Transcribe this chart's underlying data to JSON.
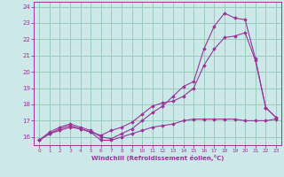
{
  "xlabel": "Windchill (Refroidissement éolien,°C)",
  "bg_color": "#cce8e8",
  "grid_color": "#99ccbb",
  "line_color": "#993399",
  "xlim": [
    -0.5,
    23.5
  ],
  "ylim": [
    15.5,
    24.3
  ],
  "yticks": [
    16,
    17,
    18,
    19,
    20,
    21,
    22,
    23,
    24
  ],
  "xticks": [
    0,
    1,
    2,
    3,
    4,
    5,
    6,
    7,
    8,
    9,
    10,
    11,
    12,
    13,
    14,
    15,
    16,
    17,
    18,
    19,
    20,
    21,
    22,
    23
  ],
  "curve1_x": [
    0,
    1,
    2,
    3,
    4,
    5,
    6,
    7,
    8,
    9,
    10,
    11,
    12,
    13,
    14,
    15,
    16,
    17,
    18,
    19,
    20,
    21,
    22,
    23
  ],
  "curve1_y": [
    15.8,
    16.2,
    16.4,
    16.6,
    16.5,
    16.3,
    15.8,
    15.8,
    16.0,
    16.2,
    16.4,
    16.6,
    16.7,
    16.8,
    17.0,
    17.1,
    17.1,
    17.1,
    17.1,
    17.1,
    17.0,
    17.0,
    17.0,
    17.1
  ],
  "curve2_x": [
    0,
    1,
    2,
    3,
    4,
    5,
    6,
    7,
    8,
    9,
    10,
    11,
    12,
    13,
    14,
    15,
    16,
    17,
    18,
    19,
    20,
    21,
    22,
    23
  ],
  "curve2_y": [
    15.8,
    16.2,
    16.5,
    16.7,
    16.5,
    16.3,
    16.1,
    16.4,
    16.6,
    16.9,
    17.4,
    17.9,
    18.1,
    18.2,
    18.5,
    19.0,
    20.4,
    21.4,
    22.1,
    22.2,
    22.4,
    20.7,
    17.8,
    17.2
  ],
  "curve3_x": [
    0,
    1,
    2,
    3,
    4,
    5,
    6,
    7,
    8,
    9,
    10,
    11,
    12,
    13,
    14,
    15,
    16,
    17,
    18,
    19,
    20,
    21,
    22,
    23
  ],
  "curve3_y": [
    15.8,
    16.3,
    16.6,
    16.8,
    16.6,
    16.4,
    16.0,
    15.9,
    16.2,
    16.5,
    17.0,
    17.5,
    17.9,
    18.5,
    19.1,
    19.4,
    21.4,
    22.8,
    23.6,
    23.3,
    23.2,
    20.8,
    17.8,
    17.2
  ]
}
